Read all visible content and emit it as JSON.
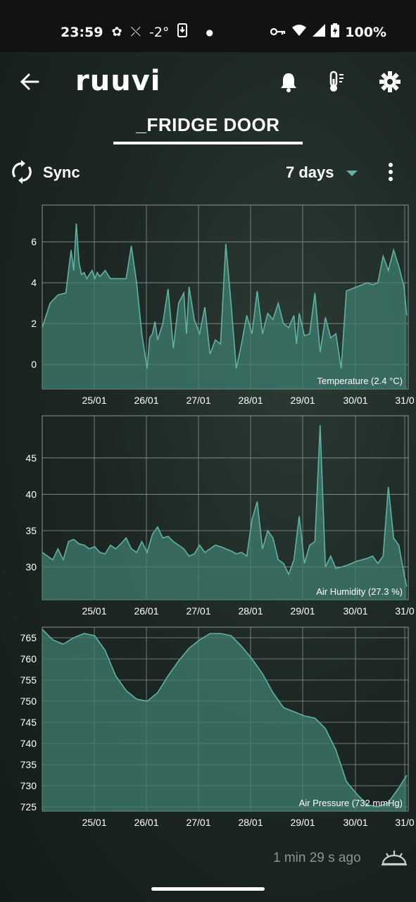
{
  "status_bar": {
    "time": "23:59",
    "temperature": "-2°",
    "battery": "100%",
    "icons": [
      "pet-icon",
      "activity-icon",
      "download-icon",
      "dot-icon",
      "key-icon",
      "wifi-icon",
      "signal-icon",
      "battery-icon"
    ]
  },
  "app_bar": {
    "logo": "ruuvi",
    "icons": [
      "back-arrow-icon",
      "bell-icon",
      "thermometer-icon",
      "gear-icon"
    ]
  },
  "sensor": {
    "name": "_FRIDGE DOOR"
  },
  "toolbar": {
    "sync_label": "Sync",
    "period_label": "7 days"
  },
  "colors": {
    "accent": "#5fb3a2",
    "fill": "#3f7d70",
    "grid": "#8a948f"
  },
  "footer": {
    "updated": "1 min 29 s ago"
  },
  "chart_data": [
    {
      "type": "area",
      "series_label": "Temperature (2.4 °C)",
      "x_ticks": [
        "25/01",
        "26/01",
        "27/01",
        "28/01",
        "29/01",
        "30/01",
        "31/0"
      ],
      "y_ticks": [
        0,
        2,
        4,
        6
      ],
      "ylim": [
        -1.2,
        7.8
      ],
      "x": [
        0.0,
        0.05,
        0.15,
        0.3,
        0.45,
        0.55,
        0.6,
        0.65,
        0.7,
        0.75,
        0.8,
        0.85,
        0.9,
        0.95,
        1.0,
        1.05,
        1.1,
        1.2,
        1.3,
        1.4,
        1.5,
        1.6,
        1.7,
        1.8,
        1.9,
        2.0,
        2.05,
        2.1,
        2.15,
        2.2,
        2.3,
        2.4,
        2.5,
        2.6,
        2.7,
        2.75,
        2.8,
        2.9,
        3.0,
        3.1,
        3.2,
        3.3,
        3.4,
        3.5,
        3.6,
        3.7,
        3.8,
        3.9,
        4.0,
        4.1,
        4.2,
        4.3,
        4.4,
        4.5,
        4.6,
        4.7,
        4.8,
        4.85,
        4.9,
        5.0,
        5.1,
        5.2,
        5.3,
        5.4,
        5.5,
        5.6,
        5.7,
        5.8,
        5.9,
        6.0,
        6.1,
        6.2,
        6.3,
        6.4,
        6.5,
        6.6,
        6.7,
        6.8,
        6.9,
        6.95
      ],
      "values": [
        1.8,
        2.2,
        3.0,
        3.4,
        3.5,
        5.6,
        4.6,
        6.9,
        5.0,
        4.4,
        4.5,
        4.2,
        4.4,
        4.6,
        4.2,
        4.5,
        4.3,
        4.6,
        4.2,
        4.2,
        4.2,
        4.2,
        5.8,
        4.0,
        1.5,
        -0.2,
        1.3,
        1.5,
        2.1,
        1.2,
        2.0,
        3.7,
        0.8,
        3.0,
        3.5,
        1.5,
        3.8,
        2.2,
        1.5,
        2.8,
        0.5,
        1.2,
        1.0,
        5.9,
        3.0,
        -0.2,
        1.0,
        2.4,
        1.5,
        3.6,
        1.5,
        2.5,
        2.2,
        3.0,
        2.0,
        1.8,
        2.4,
        1.0,
        2.5,
        1.4,
        1.5,
        3.5,
        0.6,
        2.3,
        1.3,
        1.5,
        -0.2,
        3.6,
        3.7,
        3.8,
        3.9,
        4.0,
        3.9,
        4.0,
        5.3,
        4.6,
        5.6,
        4.8,
        3.8,
        2.4
      ]
    },
    {
      "type": "area",
      "series_label": "Air Humidity (27.3 %)",
      "x_ticks": [
        "25/01",
        "26/01",
        "27/01",
        "28/01",
        "29/01",
        "30/01",
        "31/0"
      ],
      "y_ticks": [
        30,
        35,
        40,
        45
      ],
      "ylim": [
        25.5,
        50.8
      ],
      "x": [
        0.0,
        0.1,
        0.2,
        0.3,
        0.4,
        0.5,
        0.6,
        0.7,
        0.8,
        0.9,
        1.0,
        1.1,
        1.2,
        1.3,
        1.4,
        1.5,
        1.6,
        1.7,
        1.8,
        1.9,
        2.0,
        2.1,
        2.2,
        2.3,
        2.4,
        2.5,
        2.6,
        2.7,
        2.8,
        2.9,
        3.0,
        3.1,
        3.2,
        3.3,
        3.4,
        3.5,
        3.6,
        3.7,
        3.8,
        3.9,
        4.0,
        4.1,
        4.2,
        4.3,
        4.4,
        4.5,
        4.6,
        4.7,
        4.8,
        4.9,
        5.0,
        5.1,
        5.2,
        5.3,
        5.4,
        5.5,
        5.6,
        5.7,
        5.8,
        5.9,
        6.0,
        6.1,
        6.2,
        6.3,
        6.4,
        6.5,
        6.6,
        6.7,
        6.8,
        6.9,
        6.95
      ],
      "values": [
        32.0,
        31.5,
        31.0,
        32.5,
        31.0,
        33.5,
        33.8,
        33.2,
        33.0,
        32.5,
        32.8,
        32.0,
        31.8,
        33.0,
        32.5,
        33.2,
        34.0,
        32.5,
        32.0,
        33.5,
        32.0,
        34.5,
        35.5,
        34.0,
        34.2,
        33.5,
        33.0,
        32.5,
        31.5,
        31.8,
        33.0,
        32.0,
        32.5,
        33.0,
        32.8,
        32.5,
        32.2,
        31.8,
        32.0,
        31.5,
        36.5,
        39.0,
        32.5,
        35.0,
        34.0,
        31.0,
        30.5,
        29.0,
        31.0,
        37.0,
        30.5,
        33.0,
        33.5,
        49.5,
        30.0,
        31.5,
        29.8,
        30.0,
        30.2,
        30.5,
        30.8,
        31.0,
        31.2,
        31.5,
        30.5,
        31.5,
        41.0,
        34.0,
        33.0,
        29.0,
        27.3
      ]
    },
    {
      "type": "area",
      "series_label": "Air Pressure (732 mmHg)",
      "x_ticks": [
        "25/01",
        "26/01",
        "27/01",
        "28/01",
        "29/01",
        "30/01",
        "31/0"
      ],
      "y_ticks": [
        725,
        730,
        735,
        740,
        745,
        750,
        755,
        760,
        765
      ],
      "ylim": [
        724,
        767.5
      ],
      "x": [
        0.0,
        0.2,
        0.4,
        0.6,
        0.8,
        1.0,
        1.2,
        1.4,
        1.6,
        1.8,
        2.0,
        2.2,
        2.4,
        2.6,
        2.8,
        3.0,
        3.2,
        3.4,
        3.6,
        3.8,
        4.0,
        4.2,
        4.4,
        4.6,
        4.8,
        5.0,
        5.2,
        5.4,
        5.6,
        5.8,
        6.0,
        6.2,
        6.4,
        6.6,
        6.8,
        6.95
      ],
      "values": [
        767.0,
        764.5,
        763.5,
        765.0,
        766.0,
        765.5,
        762.0,
        756.0,
        752.5,
        750.5,
        750.0,
        752.0,
        756.0,
        759.5,
        762.5,
        764.5,
        766.0,
        766.0,
        765.5,
        763.0,
        760.0,
        756.5,
        752.0,
        748.5,
        747.5,
        746.5,
        746.0,
        743.5,
        738.5,
        731.0,
        728.0,
        725.5,
        725.0,
        726.0,
        729.5,
        732.5
      ]
    }
  ]
}
